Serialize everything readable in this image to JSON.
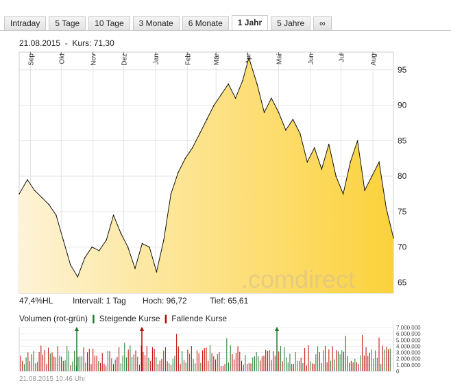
{
  "tabs": [
    "Intraday",
    "5 Tage",
    "10 Tage",
    "3 Monate",
    "6 Monate",
    "1 Jahr",
    "5 Jahre",
    "∞"
  ],
  "active_tab": "1 Jahr",
  "header": {
    "date": "21.08.2015",
    "separator": "-",
    "price_label": "Kurs: 71,30"
  },
  "stats": {
    "hl": "47,4%HL",
    "interval": "Intervall: 1 Tag",
    "high": "Hoch:  96,72",
    "low": "Tief:  65,61"
  },
  "volume_legend": {
    "title": "Volumen (rot-grün)",
    "rising": "Steigende Kurse",
    "falling": "Fallende Kurse"
  },
  "watermark": ".comdirect",
  "footer": "21.08.2015 10:46 Uhr",
  "colors": {
    "rising": "#1e7a2e",
    "falling": "#c00000",
    "fill_light": "#fdf3d6",
    "fill_dark": "#fbd23c",
    "line": "#111111"
  },
  "chart_data": [
    {
      "type": "area",
      "x": [
        "2014-08-21",
        "2014-08-29",
        "2014-09-05",
        "2014-09-12",
        "2014-09-19",
        "2014-09-26",
        "2014-10-03",
        "2014-10-10",
        "2014-10-17",
        "2014-10-24",
        "2014-10-31",
        "2014-11-07",
        "2014-11-14",
        "2014-11-21",
        "2014-11-28",
        "2014-12-05",
        "2014-12-12",
        "2014-12-19",
        "2014-12-26",
        "2015-01-02",
        "2015-01-09",
        "2015-01-16",
        "2015-01-23",
        "2015-01-30",
        "2015-02-06",
        "2015-02-13",
        "2015-02-20",
        "2015-02-27",
        "2015-03-06",
        "2015-03-13",
        "2015-03-20",
        "2015-03-27",
        "2015-04-02",
        "2015-04-10",
        "2015-04-17",
        "2015-04-24",
        "2015-05-01",
        "2015-05-08",
        "2015-05-15",
        "2015-05-22",
        "2015-05-29",
        "2015-06-05",
        "2015-06-12",
        "2015-06-19",
        "2015-06-26",
        "2015-07-03",
        "2015-07-10",
        "2015-07-17",
        "2015-07-24",
        "2015-07-31",
        "2015-08-07",
        "2015-08-14",
        "2015-08-21"
      ],
      "series": [
        {
          "values": [
            77.5,
            79.5,
            78.0,
            77.0,
            76.0,
            74.5,
            71.0,
            67.5,
            65.8,
            68.5,
            70.0,
            69.5,
            71.0,
            74.5,
            72.0,
            70.0,
            67.0,
            70.5,
            70.0,
            66.5,
            71.0,
            77.5,
            80.5,
            82.5,
            84.0,
            86.0,
            88.0,
            90.0,
            91.5,
            93.0,
            91.0,
            93.5,
            96.7,
            93.0,
            89.0,
            91.0,
            89.0,
            86.5,
            88.0,
            86.0,
            82.0,
            84.0,
            81.0,
            84.5,
            80.0,
            77.5,
            82.0,
            85.0,
            78.0,
            80.0,
            82.0,
            75.5,
            71.3
          ]
        }
      ],
      "months": [
        "Sep",
        "Okt",
        "Nov",
        "Dez",
        "Jan",
        "Feb",
        "Mär",
        "Apr",
        "Mai",
        "Jun",
        "Jul",
        "Aug"
      ],
      "yticks": [
        65,
        70,
        75,
        80,
        85,
        90,
        95
      ],
      "ylim": [
        63.5,
        97.5
      ]
    },
    {
      "type": "bar",
      "title": "Volumen (rot-grün)",
      "yticks": [
        "0",
        "1.000.000",
        "2.000.000",
        "3.000.000",
        "4.000.000",
        "5.000.000",
        "6.000.000",
        "7.000.000"
      ],
      "ylim": [
        0,
        7000000
      ]
    }
  ]
}
